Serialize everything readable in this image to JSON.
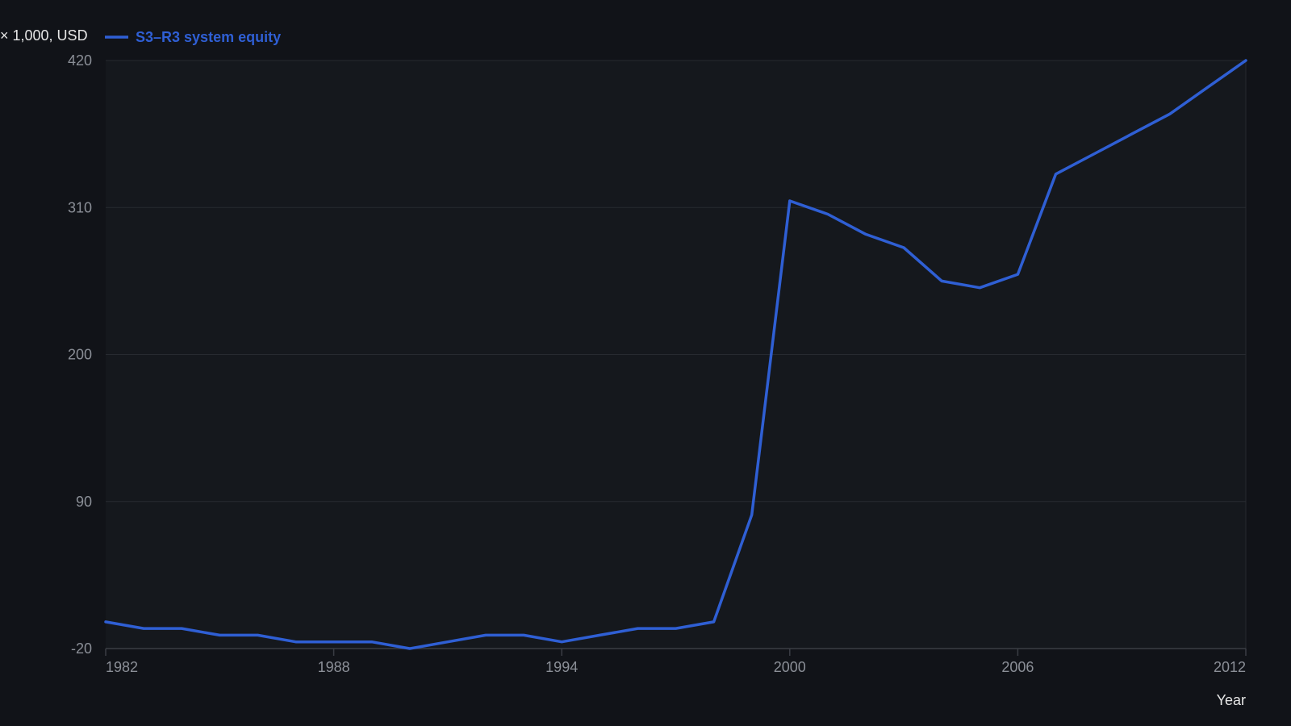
{
  "chart_data": {
    "type": "line",
    "title": "",
    "ylabel": "× 1,000, USD",
    "xlabel": "Year",
    "xlim": [
      1982,
      2012
    ],
    "ylim": [
      -20,
      420
    ],
    "x_ticks": [
      1982,
      1988,
      1994,
      2000,
      2006,
      2012
    ],
    "y_ticks": [
      -20,
      90,
      200,
      310,
      420
    ],
    "grid": true,
    "legend_position": "top-left",
    "series": [
      {
        "name": "S3–R3 system equity",
        "color": "#2f5fd4",
        "x": [
          1982,
          1983,
          1984,
          1985,
          1986,
          1987,
          1988,
          1989,
          1990,
          1991,
          1992,
          1993,
          1994,
          1995,
          1996,
          1997,
          1998,
          1999,
          2000,
          2001,
          2002,
          2003,
          2004,
          2005,
          2006,
          2007,
          2008,
          2009,
          2010,
          2011,
          2012
        ],
        "values": [
          0,
          -5,
          -5,
          -10,
          -10,
          -15,
          -15,
          -15,
          -20,
          -15,
          -10,
          -10,
          -15,
          -10,
          -5,
          -5,
          0,
          80,
          315,
          305,
          290,
          280,
          255,
          250,
          260,
          335,
          350,
          365,
          380,
          400,
          420
        ]
      }
    ]
  }
}
